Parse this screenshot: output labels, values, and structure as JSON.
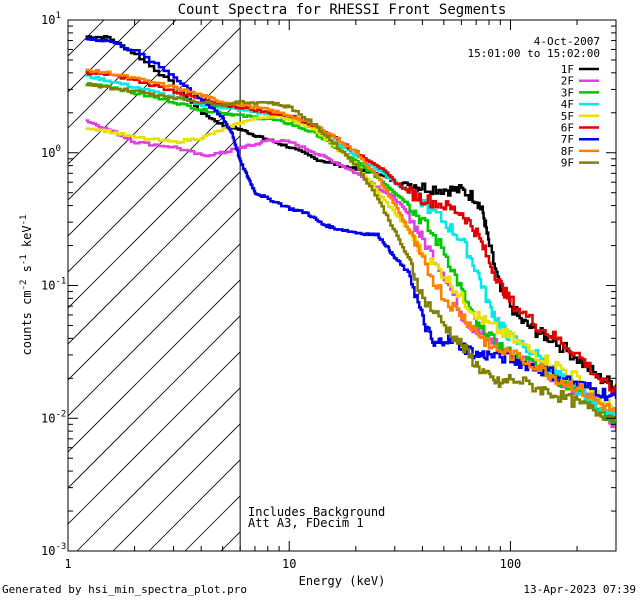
{
  "chart_data": {
    "type": "line",
    "title": "Count Spectra for RHESSI Front Segments",
    "xlabel": "Energy (keV)",
    "ylabel_parts": [
      "counts cm",
      "-2",
      " s",
      "-1",
      " keV",
      "-1"
    ],
    "x_scale": "log",
    "y_scale": "log",
    "xlim": [
      1,
      300
    ],
    "ylim": [
      0.001,
      10
    ],
    "x_tick_labels": [
      {
        "value": 1,
        "label": "1"
      },
      {
        "value": 10,
        "label": "10"
      },
      {
        "value": 100,
        "label": "100"
      }
    ],
    "y_tick_labels": [
      {
        "value": 10,
        "base": "10",
        "exp": "1"
      },
      {
        "value": 1,
        "base": "10",
        "exp": "0"
      },
      {
        "value": 0.1,
        "base": "10",
        "exp": "-1"
      },
      {
        "value": 0.01,
        "base": "10",
        "exp": "-2"
      },
      {
        "value": 0.001,
        "base": "10",
        "exp": "-3"
      }
    ],
    "date": "4-Oct-2007",
    "time_range": "15:01:00 to 15:02:00",
    "hatched_region_max_energy": 6,
    "annotations": [
      "Includes Background",
      "Att A3, FDecim 1"
    ],
    "series": [
      {
        "name": "1F",
        "color": "#000000",
        "points": [
          [
            1.2,
            7.5
          ],
          [
            1.5,
            7.4
          ],
          [
            2,
            5.5
          ],
          [
            3,
            3.2
          ],
          [
            4,
            2.0
          ],
          [
            5,
            1.6
          ],
          [
            6,
            1.5
          ],
          [
            7,
            1.35
          ],
          [
            8,
            1.25
          ],
          [
            10,
            1.1
          ],
          [
            13,
            0.9
          ],
          [
            16,
            0.82
          ],
          [
            20,
            0.75
          ],
          [
            25,
            0.7
          ],
          [
            30,
            0.6
          ],
          [
            35,
            0.58
          ],
          [
            40,
            0.55
          ],
          [
            50,
            0.53
          ],
          [
            60,
            0.52
          ],
          [
            70,
            0.45
          ],
          [
            75,
            0.35
          ],
          [
            80,
            0.2
          ],
          [
            90,
            0.09
          ],
          [
            110,
            0.055
          ],
          [
            130,
            0.045
          ],
          [
            150,
            0.04
          ],
          [
            200,
            0.028
          ],
          [
            250,
            0.02
          ],
          [
            300,
            0.018
          ]
        ]
      },
      {
        "name": "2F",
        "color": "#e040e0",
        "points": [
          [
            1.2,
            1.75
          ],
          [
            1.5,
            1.5
          ],
          [
            2,
            1.2
          ],
          [
            3,
            1.1
          ],
          [
            4,
            0.95
          ],
          [
            5,
            1.0
          ],
          [
            6,
            1.1
          ],
          [
            7,
            1.15
          ],
          [
            8,
            1.25
          ],
          [
            10,
            1.2
          ],
          [
            13,
            1.0
          ],
          [
            16,
            0.85
          ],
          [
            20,
            0.7
          ],
          [
            25,
            0.55
          ],
          [
            30,
            0.45
          ],
          [
            35,
            0.33
          ],
          [
            40,
            0.22
          ],
          [
            50,
            0.12
          ],
          [
            60,
            0.06
          ],
          [
            70,
            0.045
          ],
          [
            80,
            0.04
          ],
          [
            100,
            0.03
          ],
          [
            130,
            0.025
          ],
          [
            160,
            0.02
          ],
          [
            200,
            0.016
          ],
          [
            250,
            0.012
          ],
          [
            300,
            0.008
          ]
        ]
      },
      {
        "name": "3F",
        "color": "#00c800",
        "points": [
          [
            1.2,
            3.3
          ],
          [
            1.5,
            3.2
          ],
          [
            2,
            2.8
          ],
          [
            3,
            2.4
          ],
          [
            4,
            2.1
          ],
          [
            5,
            2.0
          ],
          [
            6,
            1.9
          ],
          [
            8,
            1.8
          ],
          [
            10,
            1.65
          ],
          [
            13,
            1.4
          ],
          [
            16,
            1.1
          ],
          [
            20,
            0.85
          ],
          [
            25,
            0.65
          ],
          [
            30,
            0.5
          ],
          [
            35,
            0.4
          ],
          [
            40,
            0.3
          ],
          [
            50,
            0.18
          ],
          [
            60,
            0.09
          ],
          [
            70,
            0.05
          ],
          [
            80,
            0.04
          ],
          [
            100,
            0.03
          ],
          [
            130,
            0.025
          ],
          [
            160,
            0.02
          ],
          [
            200,
            0.016
          ],
          [
            250,
            0.012
          ],
          [
            300,
            0.009
          ]
        ]
      },
      {
        "name": "4F",
        "color": "#00e8e8",
        "points": [
          [
            1.2,
            3.8
          ],
          [
            1.5,
            3.5
          ],
          [
            2,
            3.1
          ],
          [
            3,
            2.6
          ],
          [
            4,
            2.3
          ],
          [
            5,
            2.2
          ],
          [
            6,
            2.1
          ],
          [
            8,
            1.95
          ],
          [
            10,
            1.8
          ],
          [
            13,
            1.5
          ],
          [
            16,
            1.2
          ],
          [
            20,
            0.95
          ],
          [
            25,
            0.75
          ],
          [
            30,
            0.6
          ],
          [
            35,
            0.5
          ],
          [
            40,
            0.42
          ],
          [
            50,
            0.3
          ],
          [
            60,
            0.22
          ],
          [
            70,
            0.13
          ],
          [
            80,
            0.07
          ],
          [
            90,
            0.05
          ],
          [
            100,
            0.04
          ],
          [
            130,
            0.03
          ],
          [
            160,
            0.022
          ],
          [
            200,
            0.016
          ],
          [
            250,
            0.012
          ],
          [
            300,
            0.01
          ]
        ]
      },
      {
        "name": "5F",
        "color": "#e8e000",
        "points": [
          [
            1.2,
            1.55
          ],
          [
            1.5,
            1.45
          ],
          [
            2,
            1.3
          ],
          [
            3,
            1.2
          ],
          [
            4,
            1.3
          ],
          [
            5,
            1.5
          ],
          [
            6,
            1.7
          ],
          [
            8,
            1.9
          ],
          [
            10,
            1.8
          ],
          [
            13,
            1.5
          ],
          [
            16,
            1.1
          ],
          [
            20,
            0.8
          ],
          [
            25,
            0.5
          ],
          [
            30,
            0.35
          ],
          [
            35,
            0.25
          ],
          [
            40,
            0.17
          ],
          [
            50,
            0.12
          ],
          [
            60,
            0.08
          ],
          [
            70,
            0.06
          ],
          [
            80,
            0.05
          ],
          [
            100,
            0.04
          ],
          [
            130,
            0.03
          ],
          [
            160,
            0.025
          ],
          [
            200,
            0.02
          ],
          [
            250,
            0.014
          ],
          [
            300,
            0.011
          ]
        ]
      },
      {
        "name": "6F",
        "color": "#e00000",
        "points": [
          [
            1.2,
            4.0
          ],
          [
            1.5,
            3.9
          ],
          [
            2,
            3.5
          ],
          [
            3,
            2.9
          ],
          [
            4,
            2.5
          ],
          [
            5,
            2.3
          ],
          [
            6,
            2.2
          ],
          [
            8,
            2.0
          ],
          [
            10,
            1.9
          ],
          [
            13,
            1.6
          ],
          [
            16,
            1.3
          ],
          [
            20,
            1.0
          ],
          [
            25,
            0.8
          ],
          [
            30,
            0.6
          ],
          [
            35,
            0.5
          ],
          [
            40,
            0.45
          ],
          [
            50,
            0.4
          ],
          [
            60,
            0.35
          ],
          [
            70,
            0.25
          ],
          [
            80,
            0.15
          ],
          [
            90,
            0.1
          ],
          [
            100,
            0.075
          ],
          [
            130,
            0.05
          ],
          [
            160,
            0.04
          ],
          [
            200,
            0.03
          ],
          [
            250,
            0.02
          ],
          [
            300,
            0.015
          ]
        ]
      },
      {
        "name": "7F",
        "color": "#0000e8",
        "points": [
          [
            1.2,
            7.2
          ],
          [
            1.5,
            7.0
          ],
          [
            2,
            5.8
          ],
          [
            3,
            3.7
          ],
          [
            4,
            2.5
          ],
          [
            5,
            1.8
          ],
          [
            5.5,
            1.4
          ],
          [
            6,
            0.85
          ],
          [
            6.5,
            0.65
          ],
          [
            7,
            0.5
          ],
          [
            8,
            0.45
          ],
          [
            10,
            0.38
          ],
          [
            12,
            0.35
          ],
          [
            14,
            0.29
          ],
          [
            16,
            0.27
          ],
          [
            20,
            0.25
          ],
          [
            25,
            0.24
          ],
          [
            28,
            0.19
          ],
          [
            30,
            0.16
          ],
          [
            35,
            0.12
          ],
          [
            40,
            0.055
          ],
          [
            45,
            0.035
          ],
          [
            50,
            0.04
          ],
          [
            60,
            0.035
          ],
          [
            70,
            0.03
          ],
          [
            80,
            0.03
          ],
          [
            100,
            0.028
          ],
          [
            120,
            0.025
          ],
          [
            150,
            0.022
          ],
          [
            200,
            0.018
          ],
          [
            250,
            0.016
          ],
          [
            300,
            0.014
          ]
        ]
      },
      {
        "name": "8F",
        "color": "#ff8000",
        "points": [
          [
            1.2,
            4.2
          ],
          [
            1.5,
            4.0
          ],
          [
            2,
            3.6
          ],
          [
            3,
            3.1
          ],
          [
            4,
            2.7
          ],
          [
            5,
            2.4
          ],
          [
            6,
            2.3
          ],
          [
            8,
            2.1
          ],
          [
            10,
            1.9
          ],
          [
            13,
            1.6
          ],
          [
            16,
            1.3
          ],
          [
            20,
            1.0
          ],
          [
            25,
            0.65
          ],
          [
            30,
            0.4
          ],
          [
            35,
            0.25
          ],
          [
            40,
            0.15
          ],
          [
            50,
            0.08
          ],
          [
            60,
            0.06
          ],
          [
            70,
            0.045
          ],
          [
            80,
            0.035
          ],
          [
            100,
            0.03
          ],
          [
            130,
            0.025
          ],
          [
            160,
            0.02
          ],
          [
            200,
            0.017
          ],
          [
            250,
            0.013
          ],
          [
            300,
            0.011
          ]
        ]
      },
      {
        "name": "9F",
        "color": "#808000",
        "points": [
          [
            1.2,
            3.2
          ],
          [
            1.5,
            3.1
          ],
          [
            2,
            2.9
          ],
          [
            3,
            2.6
          ],
          [
            4,
            2.4
          ],
          [
            5,
            2.3
          ],
          [
            6,
            2.4
          ],
          [
            8,
            2.4
          ],
          [
            10,
            2.2
          ],
          [
            13,
            1.6
          ],
          [
            16,
            1.15
          ],
          [
            20,
            0.8
          ],
          [
            25,
            0.45
          ],
          [
            30,
            0.25
          ],
          [
            35,
            0.15
          ],
          [
            40,
            0.08
          ],
          [
            50,
            0.05
          ],
          [
            60,
            0.035
          ],
          [
            70,
            0.025
          ],
          [
            80,
            0.02
          ],
          [
            90,
            0.018
          ],
          [
            100,
            0.02
          ],
          [
            130,
            0.017
          ],
          [
            160,
            0.015
          ],
          [
            200,
            0.013
          ],
          [
            250,
            0.011
          ],
          [
            300,
            0.01
          ]
        ]
      }
    ]
  },
  "footer": {
    "generated_by": "Generated by hsi_min_spectra_plot.pro",
    "timestamp": "13-Apr-2023 07:39"
  }
}
